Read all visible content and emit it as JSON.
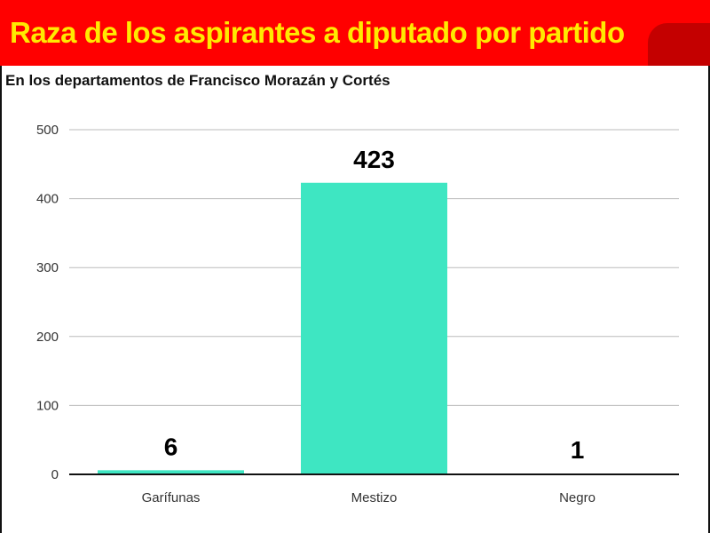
{
  "header": {
    "title": "Raza de los aspirantes a diputado por partido",
    "subtitle": "En los departamentos de Francisco Morazán y Cortés"
  },
  "colors": {
    "banner": "#ff0000",
    "banner_accent": "#c40000",
    "title": "#ffea00",
    "bar": "#3ee6c2",
    "grid": "#bbbbbb",
    "axis": "#111111"
  },
  "chart_data": {
    "type": "bar",
    "categories": [
      "Garífunas",
      "Mestizo",
      "Negro"
    ],
    "values": [
      6,
      423,
      1
    ],
    "data_labels": [
      "6",
      "423",
      "1"
    ],
    "ylim": [
      0,
      500
    ],
    "yticks": [
      0,
      100,
      200,
      300,
      400,
      500
    ],
    "grid": true,
    "legend": "none"
  }
}
